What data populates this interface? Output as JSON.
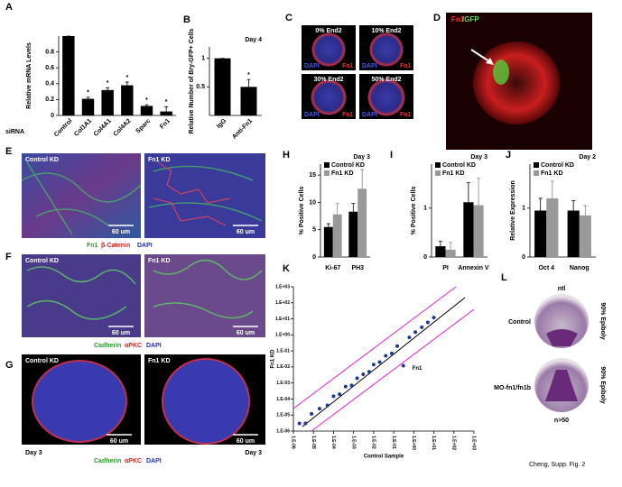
{
  "panel_letters": [
    "A",
    "B",
    "C",
    "D",
    "E",
    "F",
    "G",
    "H",
    "I",
    "J",
    "K",
    "L"
  ],
  "chart_data": [
    {
      "type": "bar",
      "ylabel": "Relative mRNA Levels",
      "xlabel": "siRNA",
      "categories": [
        "Control",
        "Col1A1",
        "Col4A1",
        "Col4A2",
        "Sparc",
        "Fn1"
      ],
      "values": [
        1,
        0.21,
        0.32,
        0.38,
        0.12,
        0.05
      ],
      "errors": [
        0,
        0.02,
        0.03,
        0.04,
        0.015,
        0.06
      ],
      "significance": [
        null,
        "*",
        "*",
        "*",
        "*",
        "*"
      ],
      "color": "#000000",
      "ylim": [
        0,
        1
      ],
      "yticks": [
        0,
        0.2,
        0.4,
        0.6,
        0.8
      ]
    },
    {
      "type": "bar",
      "title": "Day 4",
      "ylabel": "Relative Number of Bry-GFP+ Cells",
      "categories": [
        "IgG",
        "Anti-Fn1"
      ],
      "values": [
        1,
        0.5
      ],
      "errors": [
        0,
        0.13
      ],
      "significance": [
        null,
        "*"
      ],
      "color": "#000000",
      "ylim": [
        0,
        1.2
      ],
      "yticks": [
        0.5,
        1
      ]
    },
    {
      "type": "bar",
      "title": "Day 3",
      "ylabel": "% Positive Cells",
      "categories": [
        "Ki-67",
        "PH3"
      ],
      "series": [
        {
          "name": "Control KD",
          "color": "#000000",
          "values": [
            5.5,
            8.3
          ],
          "errors": [
            0.6,
            1.5
          ]
        },
        {
          "name": "Fn1 KD",
          "color": "#999999",
          "values": [
            7.8,
            12.5
          ],
          "errors": [
            2,
            3.5
          ]
        }
      ],
      "ylim": [
        0,
        17
      ],
      "yticks": [
        0,
        5,
        10,
        15
      ]
    },
    {
      "type": "bar",
      "title": "Day 3",
      "ylabel": "% Positive Cells",
      "categories": [
        "PI",
        "Annexin V"
      ],
      "series": [
        {
          "name": "Control KD",
          "color": "#000000",
          "values": [
            0.22,
            1.12
          ],
          "errors": [
            0.1,
            0.4
          ]
        },
        {
          "name": "Fn1 KD",
          "color": "#999999",
          "values": [
            0.15,
            1.06
          ],
          "errors": [
            0.15,
            0.55
          ]
        }
      ],
      "ylim": [
        0,
        1.9
      ],
      "yticks": [
        0,
        1
      ]
    },
    {
      "type": "bar",
      "title": "Day 2",
      "ylabel": "Relative Expression",
      "categories": [
        "Oct 4",
        "Nanog"
      ],
      "series": [
        {
          "name": "Control KD",
          "color": "#000000",
          "values": [
            0.95,
            0.95
          ],
          "errors": [
            0.25,
            0.2
          ]
        },
        {
          "name": "Fn1 KD",
          "color": "#999999",
          "values": [
            1.2,
            0.85
          ],
          "errors": [
            0.35,
            0.2
          ]
        }
      ],
      "ylim": [
        0,
        1.9
      ],
      "yticks": [
        0,
        1
      ]
    },
    {
      "type": "scatter",
      "xlabel": "Control Sample",
      "ylabel": "Fn1 KD",
      "log_x": true,
      "log_y": true,
      "color": "#1f3a93",
      "annotations": [
        "Fn1"
      ],
      "x": [
        2e-06,
        4e-06,
        8e-06,
        2e-05,
        5e-05,
        0.0001,
        0.0002,
        0.0004,
        0.0008,
        0.0015,
        0.003,
        0.006,
        0.01,
        0.02,
        0.04,
        0.08,
        0.15,
        0.6,
        1.2,
        2.5,
        5,
        10,
        0.3
      ],
      "y": [
        3e-06,
        3e-06,
        1.2e-05,
        2.5e-05,
        4e-05,
        0.00015,
        0.0002,
        0.0006,
        0.0007,
        0.002,
        0.0035,
        0.005,
        0.014,
        0.02,
        0.05,
        0.07,
        0.2,
        0.7,
        1.5,
        3,
        6,
        12,
        0.012
      ],
      "xlim": [
        1e-06,
        1000
      ],
      "ylim": [
        1e-06,
        1000
      ],
      "xticks": [
        {
          "value": 1e-06,
          "label": "1.E-06"
        },
        {
          "value": 1e-05,
          "label": "1.E-05"
        },
        {
          "value": 0.0001,
          "label": "1.E-04"
        },
        {
          "value": 0.001,
          "label": "1.E-03"
        },
        {
          "value": 0.01,
          "label": "1.E-02"
        },
        {
          "value": 0.1,
          "label": "1.E-01"
        },
        {
          "value": 1,
          "label": "1.E+00"
        },
        {
          "value": 10,
          "label": "1.E+01"
        },
        {
          "value": 100,
          "label": "1.E+02"
        },
        {
          "value": 1000,
          "label": "1.E+03"
        }
      ],
      "yticks": [
        {
          "value": 1e-06,
          "label": "1.E-06"
        },
        {
          "value": 1e-05,
          "label": "1.E-05"
        },
        {
          "value": 0.0001,
          "label": "1.E-04"
        },
        {
          "value": 0.001,
          "label": "1.E-03"
        },
        {
          "value": 0.01,
          "label": "1.E-02"
        },
        {
          "value": 0.1,
          "label": "1.E-01"
        },
        {
          "value": 1,
          "label": "1.E+00"
        },
        {
          "value": 10,
          "label": "1.E+01"
        },
        {
          "value": 100,
          "label": "1.E+02"
        },
        {
          "value": 1000,
          "label": "1.E+03"
        }
      ]
    }
  ],
  "panel_c": {
    "labels": [
      "0% End2",
      "10% End2",
      "30% End2",
      "50% End2"
    ],
    "stain_blue": "DAPI",
    "stain_red": "Fn1"
  },
  "panel_d": {
    "red": "Fn1",
    "green": "/GFP"
  },
  "microscopy": {
    "control": "Control KD",
    "knockdown": "Fn1 KD",
    "scale": "60 um",
    "day": "Day 3"
  },
  "legend_e": [
    "Fn1",
    "β-Catenin",
    "DAPI"
  ],
  "legend_fg": [
    "Cadherin",
    "αPKC",
    "DAPI"
  ],
  "panel_l": {
    "gene": "ntl",
    "rows": [
      "Control",
      "MO-fn1/fn1b"
    ],
    "stage": "90% Epiboly",
    "count": "n>50"
  },
  "credit": "Cheng, Supp. Fig. 2"
}
